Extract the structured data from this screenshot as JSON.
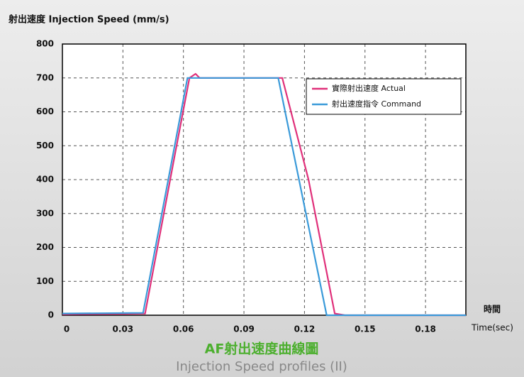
{
  "chart_data": {
    "type": "line",
    "ylabel": "射出速度  Injection Speed (mm/s)",
    "xlabel": [
      "時間",
      "Time(sec)"
    ],
    "caption": [
      "AF射出速度曲線圖",
      "Injection Speed profiles (II)"
    ],
    "xlim": [
      0,
      0.2
    ],
    "xticks": [
      0,
      0.03,
      0.06,
      0.09,
      0.12,
      0.15,
      0.18
    ],
    "ylim": [
      0,
      800
    ],
    "yticks": [
      0,
      100,
      200,
      300,
      400,
      500,
      600,
      700,
      800
    ],
    "grid": true,
    "legend": "upper right",
    "series": [
      {
        "name": "實際射出速度  Actual",
        "color": "#e0307a",
        "x": [
          0,
          0.041,
          0.055,
          0.063,
          0.066,
          0.068,
          0.109,
          0.122,
          0.135,
          0.14,
          0.2
        ],
        "values": [
          3,
          5,
          450,
          700,
          712,
          700,
          700,
          400,
          5,
          0,
          0
        ]
      },
      {
        "name": "射出速度指令  Command",
        "color": "#3a9ad9",
        "x": [
          0,
          0.04,
          0.062,
          0.107,
          0.131,
          0.2
        ],
        "values": [
          5,
          7,
          700,
          700,
          0,
          0
        ]
      }
    ]
  }
}
